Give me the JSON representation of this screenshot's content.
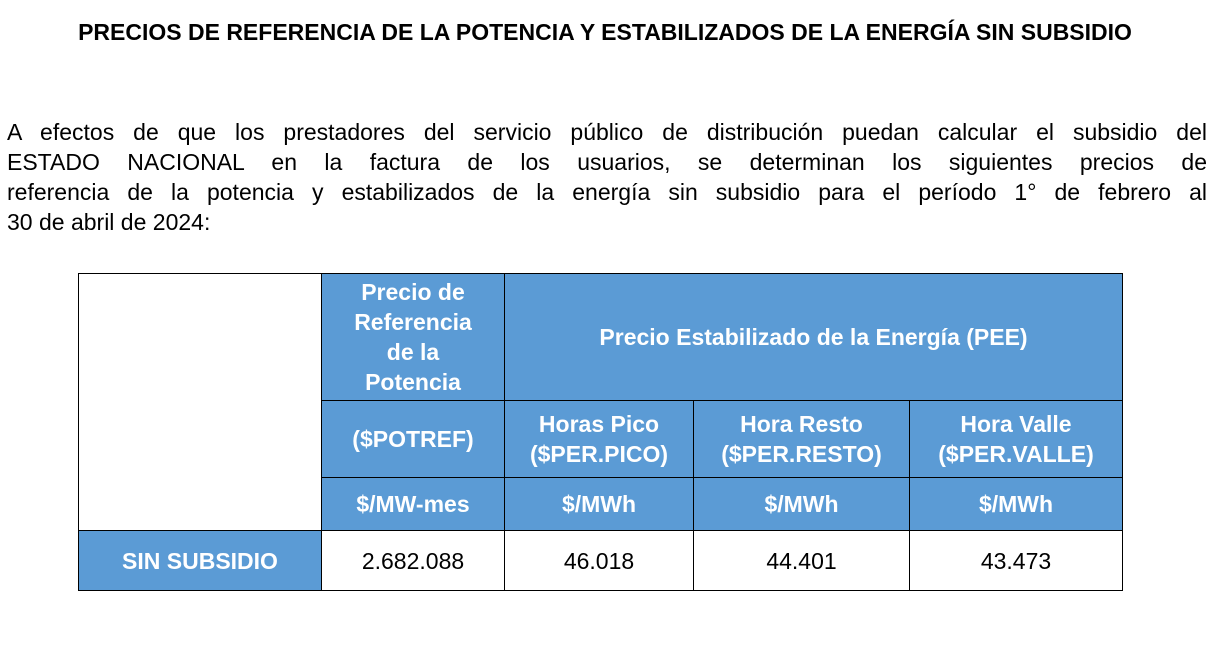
{
  "document": {
    "title": "PRECIOS DE REFERENCIA DE LA POTENCIA Y ESTABILIZADOS DE LA ENERGÍA SIN SUBSIDIO",
    "paragraph_lines": [
      "A efectos de que los prestadores del servicio público de distribución puedan calcular el subsidio del",
      "ESTADO NACIONAL en la factura de los usuarios, se determinan los siguientes precios de",
      "referencia de la potencia y estabilizados de la energía sin subsidio para el período 1° de febrero al",
      "30 de abril de 2024:"
    ]
  },
  "table": {
    "col_potencia_header": "Precio de Referencia de la Potencia",
    "col_pee_header": "Precio Estabilizado de la Energía (PEE)",
    "potref_code": "($POTREF)",
    "pico_name": "Horas Pico",
    "pico_code": "($PER.PICO)",
    "resto_name": "Hora Resto",
    "resto_code": "($PER.RESTO)",
    "valle_name": "Hora Valle",
    "valle_code": "($PER.VALLE)",
    "units": [
      "$/MW-mes",
      "$/MWh",
      "$/MWh",
      "$/MWh"
    ],
    "row": {
      "label": "SIN SUBSIDIO",
      "values": [
        "2.682.088",
        "46.018",
        "44.401",
        "43.473"
      ]
    }
  },
  "colors": {
    "header_blue": "#5b9bd5",
    "header_text": "#ffffff",
    "border": "#000000"
  }
}
